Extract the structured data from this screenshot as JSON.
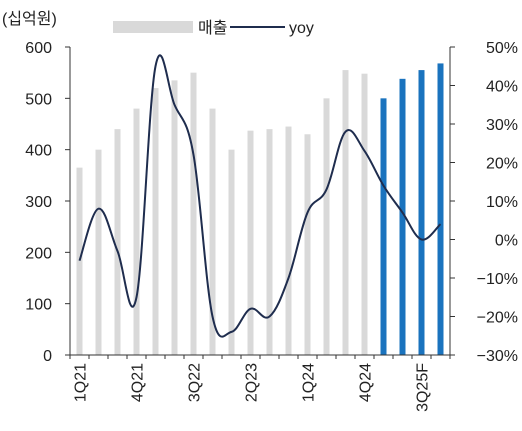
{
  "chart_data": {
    "type": "bar+line",
    "unit_label": "(십억원)",
    "categories": [
      "1Q21",
      "2Q21",
      "3Q21",
      "4Q21",
      "1Q22",
      "2Q22",
      "3Q22",
      "4Q22",
      "1Q23",
      "2Q23",
      "3Q23",
      "4Q23",
      "1Q24",
      "2Q24",
      "3Q24",
      "4Q24",
      "1Q25",
      "2Q25",
      "3Q25F",
      "4Q25F"
    ],
    "x_tick_labels": [
      "1Q21",
      "4Q21",
      "3Q22",
      "2Q23",
      "1Q24",
      "4Q24",
      "3Q25F"
    ],
    "series": [
      {
        "name": "매출",
        "type": "bar",
        "axis": "left",
        "color": "#d9d9d9",
        "forecast_color": "#1a73be",
        "forecast_from_index": 16,
        "values": [
          365,
          400,
          440,
          480,
          520,
          535,
          550,
          480,
          400,
          437,
          440,
          445,
          430,
          500,
          555,
          548,
          500,
          538,
          555,
          568
        ]
      },
      {
        "name": "yoy",
        "type": "line",
        "axis": "right",
        "color": "#1f2d4e",
        "values": [
          -5.5,
          8,
          -3,
          -15,
          45,
          35,
          22,
          -20,
          -24,
          -18,
          -20,
          -10,
          7,
          13,
          28,
          23,
          14,
          7,
          0,
          4
        ]
      }
    ],
    "y_left": {
      "min": 0,
      "max": 600,
      "ticks": [
        0,
        100,
        200,
        300,
        400,
        500,
        600
      ]
    },
    "y_right": {
      "min": -30,
      "max": 50,
      "ticks": [
        -30,
        -20,
        -10,
        0,
        10,
        20,
        30,
        40,
        50
      ],
      "tick_labels": [
        "−30%",
        "−20%",
        "−10%",
        "0%",
        "10%",
        "20%",
        "30%",
        "40%",
        "50%"
      ]
    },
    "legend": {
      "position": "top",
      "items": [
        {
          "label": "매출",
          "kind": "bar",
          "color": "#d9d9d9"
        },
        {
          "label": "yoy",
          "kind": "line",
          "color": "#1f2d4e"
        }
      ]
    },
    "grid": false
  }
}
